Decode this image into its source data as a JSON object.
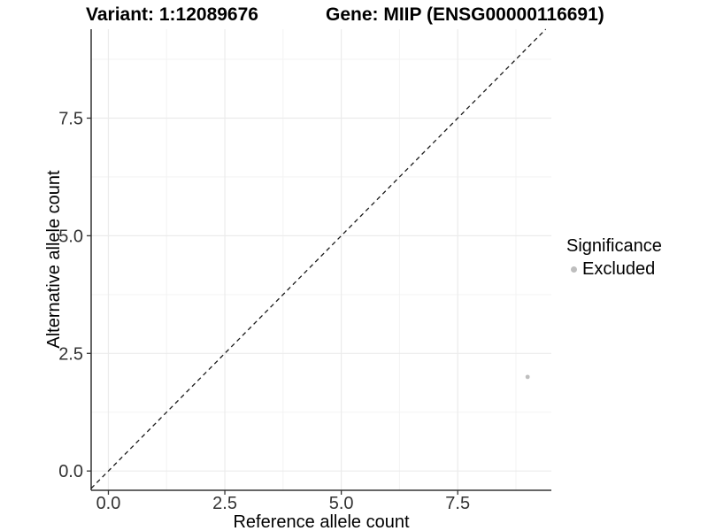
{
  "titles": {
    "variant": "Variant: 1:12089676",
    "gene": "Gene: MIIP (ENSG00000116691)"
  },
  "chart_data": {
    "type": "scatter",
    "xlabel": "Reference allele count",
    "ylabel": "Alternative allele count",
    "x_ticks": [
      0.0,
      2.5,
      5.0,
      7.5
    ],
    "y_ticks": [
      0.0,
      2.5,
      5.0,
      7.5
    ],
    "x_tick_labels": [
      "0.0",
      "2.5",
      "5.0",
      "7.5"
    ],
    "y_tick_labels": [
      "0.0",
      "2.5",
      "5.0",
      "7.5"
    ],
    "xlim": [
      -0.37,
      9.51
    ],
    "ylim": [
      -0.41,
      9.39
    ],
    "grid": true,
    "points": [
      {
        "x": 9,
        "y": 2,
        "series": "Excluded"
      }
    ],
    "reference_line": {
      "type": "identity",
      "slope": 1,
      "intercept": 0,
      "style": "dashed"
    },
    "legend": {
      "title": "Significance",
      "position": "right",
      "items": [
        {
          "label": "Excluded",
          "color": "#BEBEBE"
        }
      ]
    }
  },
  "colors": {
    "point": "#BEBEBE",
    "axis_line": "#333333",
    "tick_text": "#333333",
    "grid_major": "#EBEBEB",
    "grid_minor": "#F3F3F3",
    "dashed_line": "#1A1A1A",
    "background": "#FFFFFF"
  }
}
